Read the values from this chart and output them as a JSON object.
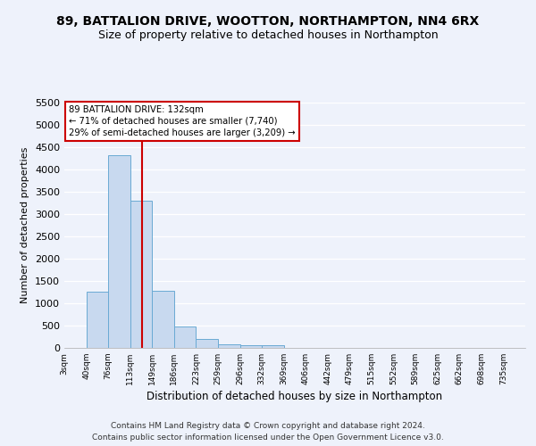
{
  "title": "89, BATTALION DRIVE, WOOTTON, NORTHAMPTON, NN4 6RX",
  "subtitle": "Size of property relative to detached houses in Northampton",
  "xlabel": "Distribution of detached houses by size in Northampton",
  "ylabel": "Number of detached properties",
  "bin_labels": [
    "3sqm",
    "40sqm",
    "76sqm",
    "113sqm",
    "149sqm",
    "186sqm",
    "223sqm",
    "259sqm",
    "296sqm",
    "332sqm",
    "369sqm",
    "406sqm",
    "442sqm",
    "479sqm",
    "515sqm",
    "552sqm",
    "589sqm",
    "625sqm",
    "662sqm",
    "698sqm",
    "735sqm"
  ],
  "bar_values": [
    0,
    1260,
    4330,
    3300,
    1280,
    490,
    210,
    85,
    60,
    55,
    0,
    0,
    0,
    0,
    0,
    0,
    0,
    0,
    0,
    0,
    0
  ],
  "bar_color": "#c8d9ef",
  "bar_edgecolor": "#6aaad4",
  "ylim": [
    0,
    5500
  ],
  "yticks": [
    0,
    500,
    1000,
    1500,
    2000,
    2500,
    3000,
    3500,
    4000,
    4500,
    5000,
    5500
  ],
  "vline_color": "#cc0000",
  "annotation_line1": "89 BATTALION DRIVE: 132sqm",
  "annotation_line2": "← 71% of detached houses are smaller (7,740)",
  "annotation_line3": "29% of semi-detached houses are larger (3,209) →",
  "annotation_box_color": "#cc0000",
  "footer_line1": "Contains HM Land Registry data © Crown copyright and database right 2024.",
  "footer_line2": "Contains public sector information licensed under the Open Government Licence v3.0.",
  "background_color": "#eef2fb",
  "grid_color": "#ffffff",
  "title_fontsize": 10,
  "subtitle_fontsize": 9
}
